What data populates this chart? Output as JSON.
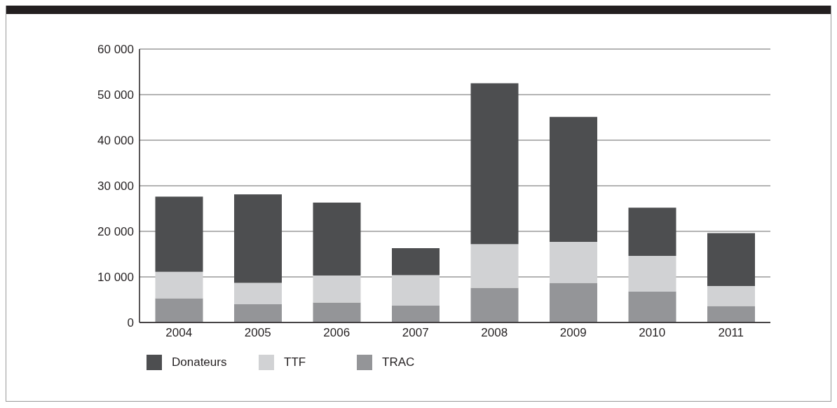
{
  "chart_data": {
    "type": "bar",
    "stacked": true,
    "categories": [
      "2004",
      "2005",
      "2006",
      "2007",
      "2008",
      "2009",
      "2010",
      "2011"
    ],
    "series": [
      {
        "name": "TRAC",
        "color": "#949598",
        "values": [
          5300,
          4000,
          4400,
          3700,
          7600,
          8700,
          6800,
          3600
        ]
      },
      {
        "name": "TTF",
        "color": "#d1d2d4",
        "values": [
          5800,
          4700,
          5900,
          6700,
          9600,
          9000,
          7800,
          4400
        ]
      },
      {
        "name": "Donateurs",
        "color": "#4d4e50",
        "values": [
          16500,
          19400,
          16000,
          5900,
          35300,
          27400,
          10600,
          11600
        ]
      }
    ],
    "ylim": [
      0,
      60000
    ],
    "yticks": [
      {
        "value": 0,
        "label": "0"
      },
      {
        "value": 10000,
        "label": "10 000"
      },
      {
        "value": 20000,
        "label": "20 000"
      },
      {
        "value": 30000,
        "label": "30 000"
      },
      {
        "value": 40000,
        "label": "40 000"
      },
      {
        "value": 50000,
        "label": "50 000"
      },
      {
        "value": 60000,
        "label": "60 000"
      }
    ],
    "grid": "y",
    "legend": "bottom"
  }
}
